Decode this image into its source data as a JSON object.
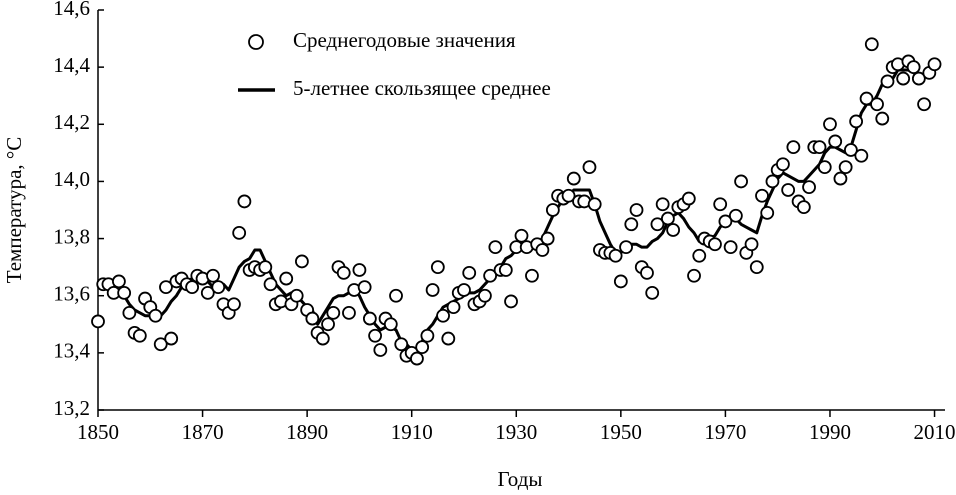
{
  "chart_data": {
    "type": "scatter-line",
    "xlabel": "Годы",
    "ylabel": "Температура, °C",
    "x": [
      1850,
      1851,
      1852,
      1853,
      1854,
      1855,
      1856,
      1857,
      1858,
      1859,
      1860,
      1861,
      1862,
      1863,
      1864,
      1865,
      1866,
      1867,
      1868,
      1869,
      1870,
      1871,
      1872,
      1873,
      1874,
      1875,
      1876,
      1877,
      1878,
      1879,
      1880,
      1881,
      1882,
      1883,
      1884,
      1885,
      1886,
      1887,
      1888,
      1889,
      1890,
      1891,
      1892,
      1893,
      1894,
      1895,
      1896,
      1897,
      1898,
      1899,
      1900,
      1901,
      1902,
      1903,
      1904,
      1905,
      1906,
      1907,
      1908,
      1909,
      1910,
      1911,
      1912,
      1913,
      1914,
      1915,
      1916,
      1917,
      1918,
      1919,
      1920,
      1921,
      1922,
      1923,
      1924,
      1925,
      1926,
      1927,
      1928,
      1929,
      1930,
      1931,
      1932,
      1933,
      1934,
      1935,
      1936,
      1937,
      1938,
      1939,
      1940,
      1941,
      1942,
      1943,
      1944,
      1945,
      1946,
      1947,
      1948,
      1949,
      1950,
      1951,
      1952,
      1953,
      1954,
      1955,
      1956,
      1957,
      1958,
      1959,
      1960,
      1961,
      1962,
      1963,
      1964,
      1965,
      1966,
      1967,
      1968,
      1969,
      1970,
      1971,
      1972,
      1973,
      1974,
      1975,
      1976,
      1977,
      1978,
      1979,
      1980,
      1981,
      1982,
      1983,
      1984,
      1985,
      1986,
      1987,
      1988,
      1989,
      1990,
      1991,
      1992,
      1993,
      1994,
      1995,
      1996,
      1997,
      1998,
      1999,
      2000,
      2001,
      2002,
      2003,
      2004,
      2005,
      2006,
      2007,
      2008,
      2009,
      2010
    ],
    "series": [
      {
        "name": "Среднегодовые значения",
        "kind": "markers",
        "color": "#000000",
        "values": [
          13.51,
          13.64,
          13.64,
          13.61,
          13.65,
          13.61,
          13.54,
          13.47,
          13.46,
          13.59,
          13.56,
          13.53,
          13.43,
          13.63,
          13.45,
          13.65,
          13.66,
          13.64,
          13.63,
          13.67,
          13.66,
          13.61,
          13.67,
          13.63,
          13.57,
          13.54,
          13.57,
          13.82,
          13.93,
          13.69,
          13.7,
          13.69,
          13.7,
          13.64,
          13.57,
          13.58,
          13.66,
          13.57,
          13.6,
          13.72,
          13.55,
          13.52,
          13.47,
          13.45,
          13.5,
          13.54,
          13.7,
          13.68,
          13.54,
          13.62,
          13.69,
          13.63,
          13.52,
          13.46,
          13.41,
          13.52,
          13.5,
          13.6,
          13.43,
          13.39,
          13.4,
          13.38,
          13.42,
          13.46,
          13.62,
          13.7,
          13.53,
          13.45,
          13.56,
          13.61,
          13.62,
          13.68,
          13.57,
          13.58,
          13.6,
          13.67,
          13.77,
          13.69,
          13.69,
          13.58,
          13.77,
          13.81,
          13.77,
          13.67,
          13.78,
          13.76,
          13.8,
          13.9,
          13.95,
          13.94,
          13.95,
          14.01,
          13.93,
          13.93,
          14.05,
          13.92,
          13.76,
          13.75,
          13.75,
          13.74,
          13.65,
          13.77,
          13.85,
          13.9,
          13.7,
          13.68,
          13.61,
          13.85,
          13.92,
          13.87,
          13.83,
          13.91,
          13.92,
          13.94,
          13.67,
          13.74,
          13.8,
          13.79,
          13.78,
          13.92,
          13.86,
          13.77,
          13.88,
          14.0,
          13.75,
          13.78,
          13.7,
          13.95,
          13.89,
          14.0,
          14.04,
          14.06,
          13.97,
          14.12,
          13.93,
          13.91,
          13.98,
          14.12,
          14.12,
          14.05,
          14.2,
          14.14,
          14.01,
          14.05,
          14.11,
          14.21,
          14.09,
          14.29,
          14.48,
          14.27,
          14.22,
          14.35,
          14.4,
          14.41,
          14.36,
          14.42,
          14.4,
          14.36,
          14.27,
          14.38,
          14.41
        ]
      },
      {
        "name": "5-летнее скользящее среднее",
        "kind": "line",
        "color": "#000000",
        "values": [
          null,
          null,
          13.62,
          13.62,
          13.62,
          13.6,
          13.57,
          13.55,
          13.54,
          13.53,
          13.53,
          13.54,
          13.53,
          13.55,
          13.58,
          13.6,
          13.63,
          13.65,
          13.66,
          13.66,
          13.65,
          13.65,
          13.63,
          13.62,
          13.64,
          13.62,
          13.66,
          13.7,
          13.72,
          13.73,
          13.76,
          13.76,
          13.72,
          13.68,
          13.64,
          13.62,
          13.6,
          13.61,
          13.6,
          13.58,
          13.56,
          13.55,
          13.5,
          13.53,
          13.56,
          13.59,
          13.6,
          13.6,
          13.61,
          13.62,
          13.6,
          13.56,
          13.53,
          13.5,
          13.48,
          13.49,
          13.49,
          13.48,
          13.44,
          13.43,
          13.41,
          13.41,
          13.44,
          13.48,
          13.5,
          13.53,
          13.56,
          13.57,
          13.58,
          13.59,
          13.6,
          13.61,
          13.61,
          13.62,
          13.64,
          13.66,
          13.68,
          13.7,
          13.73,
          13.74,
          13.76,
          13.76,
          13.77,
          13.77,
          13.78,
          13.8,
          13.84,
          13.88,
          13.91,
          13.94,
          13.95,
          13.97,
          13.97,
          13.97,
          13.97,
          13.92,
          13.86,
          13.82,
          13.78,
          13.75,
          13.75,
          13.77,
          13.78,
          13.78,
          13.77,
          13.77,
          13.79,
          13.8,
          13.82,
          13.86,
          13.88,
          13.89,
          13.87,
          13.84,
          13.82,
          13.79,
          13.79,
          13.8,
          13.81,
          13.84,
          13.86,
          13.88,
          13.87,
          13.85,
          13.84,
          13.83,
          13.82,
          13.88,
          13.93,
          13.97,
          14.01,
          14.03,
          14.02,
          14.01,
          14.0,
          14.0,
          14.02,
          14.04,
          14.06,
          14.1,
          14.12,
          14.12,
          14.11,
          14.1,
          14.12,
          14.18,
          14.24,
          14.27,
          14.27,
          14.3,
          14.34,
          14.35,
          14.36,
          14.39,
          14.39,
          14.39,
          14.38,
          14.37,
          null,
          null,
          null
        ]
      }
    ],
    "xlim": [
      1850,
      2012
    ],
    "xticks": [
      1850,
      1870,
      1890,
      1910,
      1930,
      1950,
      1970,
      1990,
      2010
    ],
    "ylim": [
      13.2,
      14.6
    ],
    "yticks": [
      {
        "value": 13.2,
        "label": "13,2"
      },
      {
        "value": 13.4,
        "label": "13,4"
      },
      {
        "value": 13.6,
        "label": "13,6"
      },
      {
        "value": 13.8,
        "label": "13,8"
      },
      {
        "value": 14.0,
        "label": "14,0"
      },
      {
        "value": 14.2,
        "label": "14,2"
      },
      {
        "value": 14.4,
        "label": "14,4"
      },
      {
        "value": 14.6,
        "label": "14,6"
      }
    ],
    "legend": "upper-left",
    "grid": false
  }
}
